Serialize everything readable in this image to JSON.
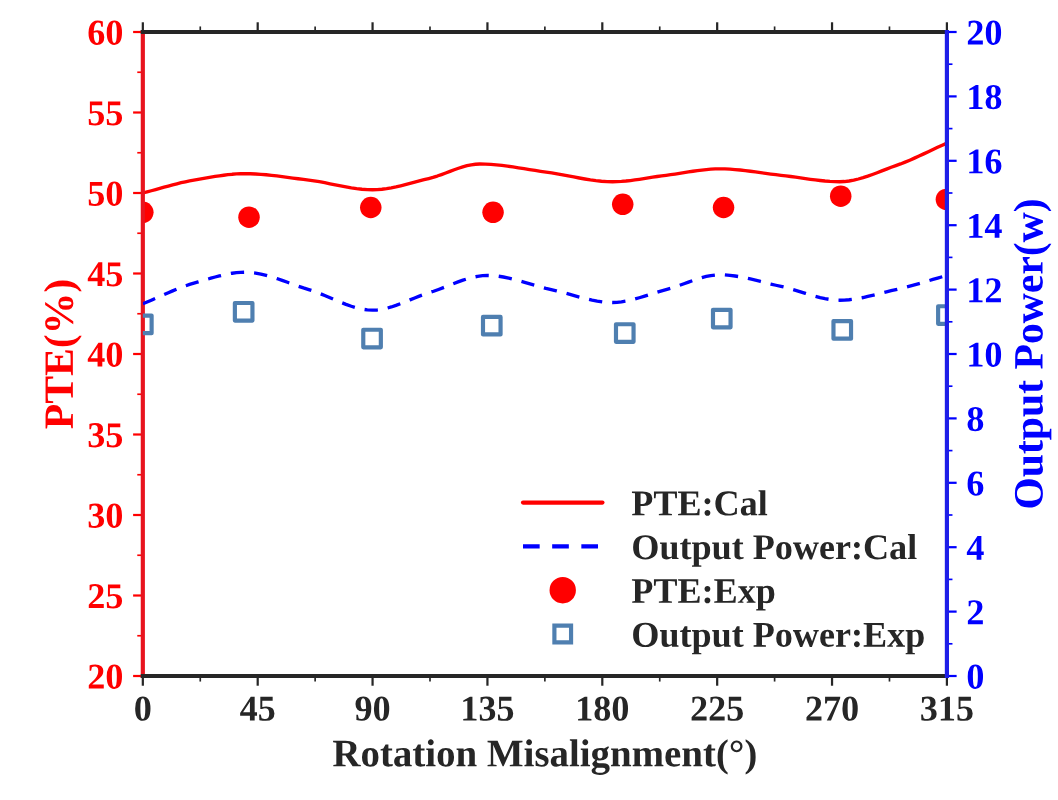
{
  "chart_data": {
    "type": "line",
    "xlabel": "Rotation Misalignment(°)",
    "ylabel": "PTE(%)",
    "y2label": "Output Power(w)",
    "xlim": [
      0,
      315
    ],
    "xticks": [
      0,
      45,
      90,
      135,
      180,
      225,
      270,
      315
    ],
    "ylim": [
      20,
      60
    ],
    "yticks": [
      20,
      25,
      30,
      35,
      40,
      45,
      50,
      55,
      60
    ],
    "y2lim": [
      0,
      20
    ],
    "y2ticks": [
      0,
      2,
      4,
      6,
      8,
      10,
      12,
      14,
      16,
      18,
      20
    ],
    "legend": "bottom right",
    "grid": false,
    "series": [
      {
        "name": "PTE:Cal",
        "line_style": "solid",
        "color": "#ff0000",
        "x": [
          0,
          20,
          40,
          65,
          90,
          112,
          132,
          158,
          184,
          205,
          226,
          250,
          273,
          295,
          315
        ],
        "values": [
          50.0,
          50.8,
          51.2,
          50.8,
          50.2,
          50.9,
          51.8,
          51.3,
          50.7,
          51.1,
          51.5,
          51.1,
          50.7,
          51.7,
          53.1
        ]
      },
      {
        "name": "Output Power:Cal",
        "type": "line",
        "line_style": "dashed",
        "axis": "y2",
        "color": "#0000ff",
        "x": [
          0,
          20,
          40,
          65,
          90,
          112,
          135,
          160,
          184,
          205,
          226,
          250,
          273,
          295,
          315
        ],
        "values": [
          11.56,
          12.2,
          12.54,
          12.0,
          11.36,
          11.9,
          12.44,
          12.0,
          11.6,
          12.0,
          12.46,
          12.1,
          11.67,
          12.0,
          12.44
        ]
      },
      {
        "name": "PTE:Exp",
        "type": "scatter",
        "marker": "circle",
        "color": "#ff0000",
        "x": [
          0,
          41.6,
          89.3,
          137.2,
          188,
          227.5,
          273.4,
          314.8
        ],
        "values": [
          48.8,
          48.5,
          49.1,
          48.8,
          49.3,
          49.1,
          49.8,
          49.6
        ]
      },
      {
        "name": "Output Power:Exp",
        "type": "scatter",
        "marker": "square",
        "axis": "y2",
        "color": "#4f7fb0",
        "x": [
          0,
          39.5,
          89.8,
          136.7,
          188.8,
          226.8,
          274,
          315
        ],
        "values": [
          10.92,
          11.31,
          10.48,
          10.88,
          10.65,
          11.1,
          10.75,
          11.21
        ]
      }
    ]
  }
}
